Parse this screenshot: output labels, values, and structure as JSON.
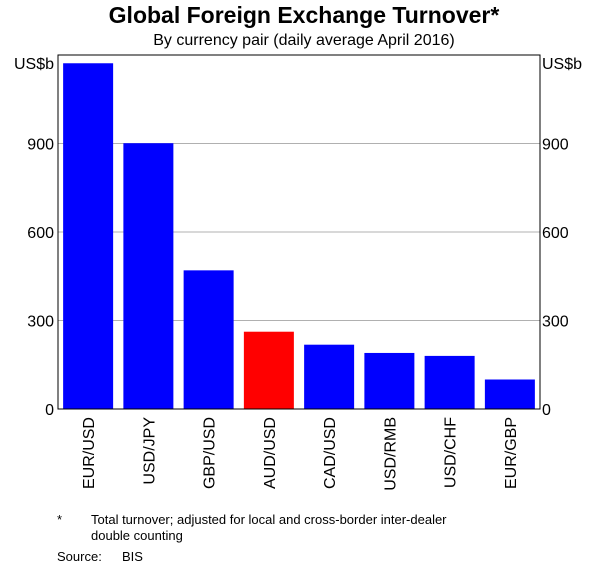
{
  "chart_data": {
    "type": "bar",
    "title": "Global Foreign Exchange Turnover*",
    "subtitle": "By currency pair (daily average April 2016)",
    "ylabel_left": "US$b",
    "ylabel_right": "US$b",
    "ylim": [
      0,
      1200
    ],
    "yticks": [
      0,
      300,
      600,
      900
    ],
    "grid": true,
    "categories": [
      "EUR/USD",
      "USD/JPY",
      "GBP/USD",
      "AUD/USD",
      "CAD/USD",
      "USD/RMB",
      "USD/CHF",
      "EUR/GBP"
    ],
    "values": [
      1172,
      901,
      470,
      262,
      218,
      190,
      180,
      100
    ],
    "colors": [
      "#0000ff",
      "#0000ff",
      "#0000ff",
      "#ff0000",
      "#0000ff",
      "#0000ff",
      "#0000ff",
      "#0000ff"
    ]
  },
  "footnote": {
    "marker": "*",
    "text_line1": "Total turnover; adjusted for local and cross-border inter-dealer",
    "text_line2": "double counting",
    "source_label": "Source:",
    "source_value": "BIS"
  }
}
